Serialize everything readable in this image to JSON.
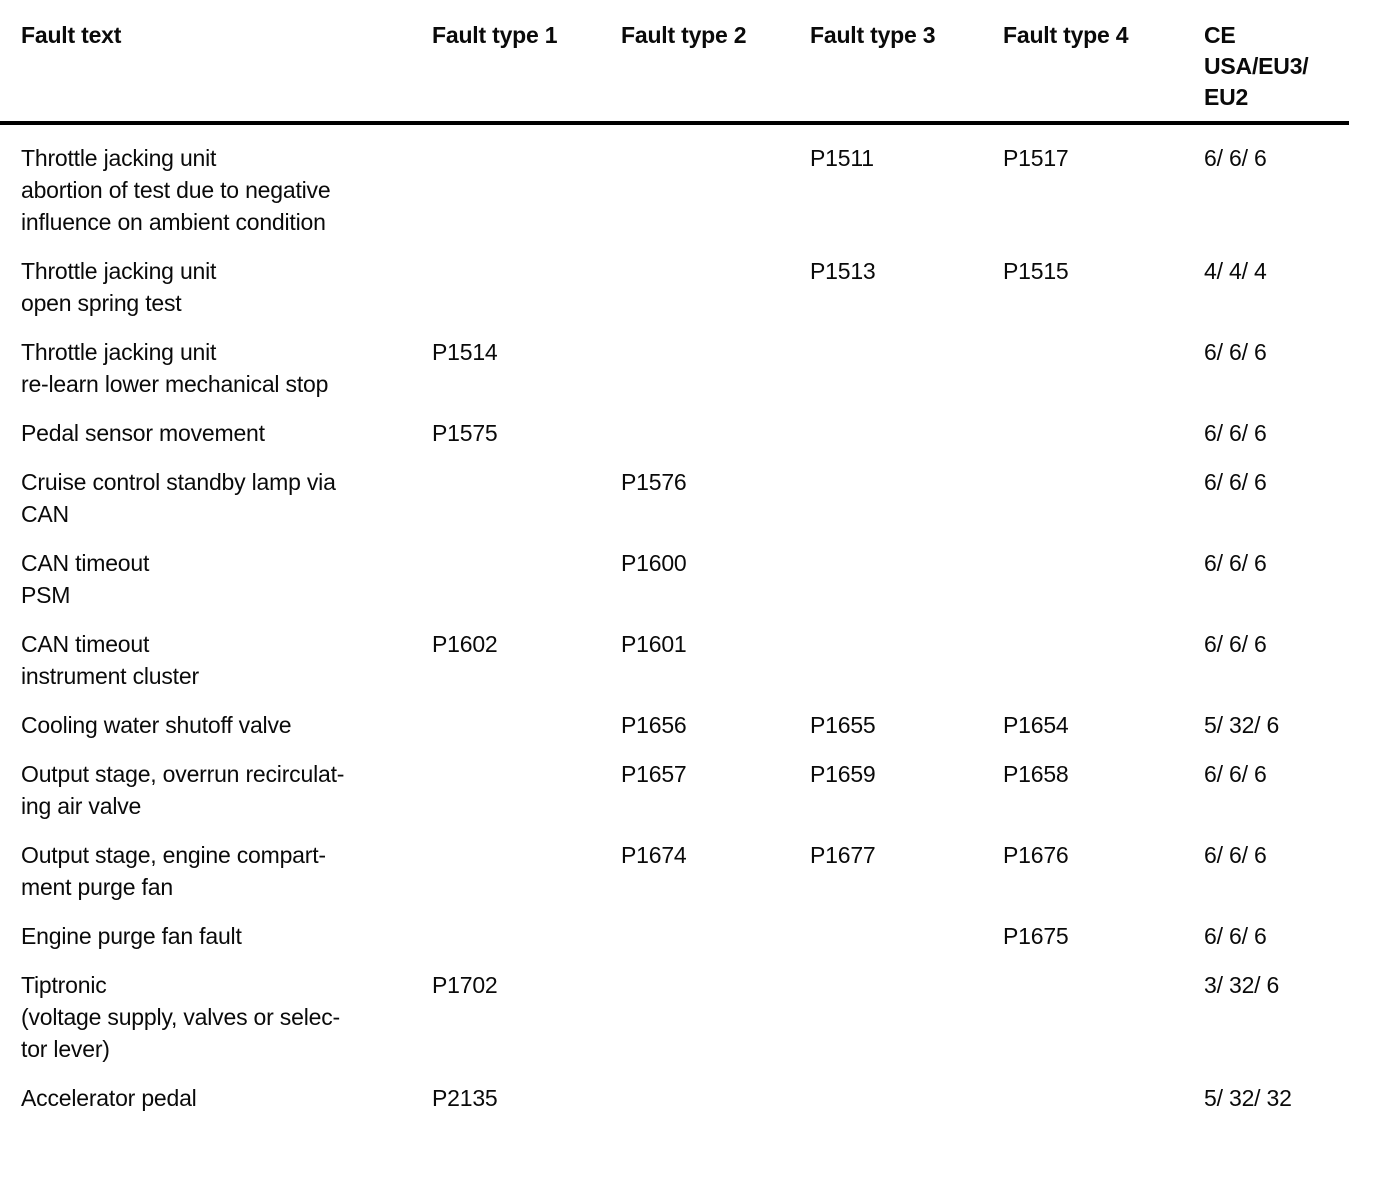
{
  "page": {
    "background": "#ffffff",
    "text_color": "#0a0a0a"
  },
  "table": {
    "columns": [
      "Fault text",
      "Fault type 1",
      "Fault type 2",
      "Fault type 3",
      "Fault type 4",
      "CE\nUSA/EU3/\nEU2"
    ],
    "rows": [
      {
        "fault_text": "Throttle jacking unit\nabortion of test due to negative\ninfluence on ambient condition",
        "fault_type_1": "",
        "fault_type_2": "",
        "fault_type_3": "P1511",
        "fault_type_4": "P1517",
        "ce": "6/ 6/ 6"
      },
      {
        "fault_text": "Throttle jacking unit\nopen spring test",
        "fault_type_1": "",
        "fault_type_2": "",
        "fault_type_3": "P1513",
        "fault_type_4": "P1515",
        "ce": "4/ 4/ 4"
      },
      {
        "fault_text": "Throttle jacking unit\nre-learn lower mechanical stop",
        "fault_type_1": "P1514",
        "fault_type_2": "",
        "fault_type_3": "",
        "fault_type_4": "",
        "ce": "6/ 6/ 6"
      },
      {
        "fault_text": "Pedal sensor movement",
        "fault_type_1": "P1575",
        "fault_type_2": "",
        "fault_type_3": "",
        "fault_type_4": "",
        "ce": "6/ 6/ 6"
      },
      {
        "fault_text": "Cruise control standby lamp via\nCAN",
        "fault_type_1": "",
        "fault_type_2": "P1576",
        "fault_type_3": "",
        "fault_type_4": "",
        "ce": "6/ 6/ 6"
      },
      {
        "fault_text": "CAN timeout\nPSM",
        "fault_type_1": "",
        "fault_type_2": "P1600",
        "fault_type_3": "",
        "fault_type_4": "",
        "ce": "6/ 6/ 6"
      },
      {
        "fault_text": "CAN timeout\ninstrument cluster",
        "fault_type_1": "P1602",
        "fault_type_2": "P1601",
        "fault_type_3": "",
        "fault_type_4": "",
        "ce": "6/ 6/ 6"
      },
      {
        "fault_text": "Cooling water shutoff valve",
        "fault_type_1": "",
        "fault_type_2": "P1656",
        "fault_type_3": "P1655",
        "fault_type_4": "P1654",
        "ce": "5/ 32/ 6"
      },
      {
        "fault_text": "Output stage, overrun recirculat-\ning air valve",
        "fault_type_1": "",
        "fault_type_2": "P1657",
        "fault_type_3": "P1659",
        "fault_type_4": "P1658",
        "ce": "6/ 6/ 6"
      },
      {
        "fault_text": "Output stage, engine compart-\nment purge fan",
        "fault_type_1": "",
        "fault_type_2": "P1674",
        "fault_type_3": "P1677",
        "fault_type_4": "P1676",
        "ce": "6/ 6/ 6"
      },
      {
        "fault_text": "Engine purge fan fault",
        "fault_type_1": "",
        "fault_type_2": "",
        "fault_type_3": "",
        "fault_type_4": "P1675",
        "ce": "6/ 6/ 6"
      },
      {
        "fault_text": "Tiptronic\n(voltage supply, valves or selec-\ntor lever)",
        "fault_type_1": "P1702",
        "fault_type_2": "",
        "fault_type_3": "",
        "fault_type_4": "",
        "ce": "3/ 32/ 6"
      },
      {
        "fault_text": "Accelerator pedal",
        "fault_type_1": "P2135",
        "fault_type_2": "",
        "fault_type_3": "",
        "fault_type_4": "",
        "ce": "5/ 32/ 32"
      }
    ]
  }
}
